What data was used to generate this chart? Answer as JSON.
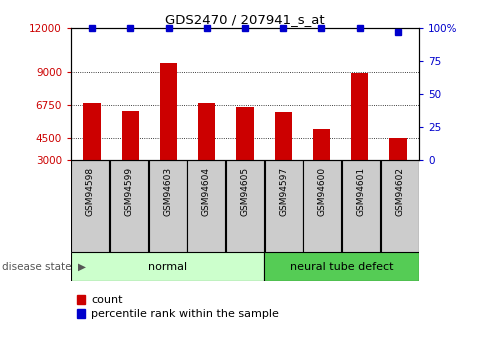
{
  "title": "GDS2470 / 207941_s_at",
  "samples": [
    "GSM94598",
    "GSM94599",
    "GSM94603",
    "GSM94604",
    "GSM94605",
    "GSM94597",
    "GSM94600",
    "GSM94601",
    "GSM94602"
  ],
  "counts": [
    6900,
    6350,
    9600,
    6900,
    6600,
    6300,
    5100,
    8900,
    4500
  ],
  "percentiles": [
    100,
    100,
    100,
    100,
    100,
    100,
    100,
    100,
    97
  ],
  "bar_color": "#cc0000",
  "dot_color": "#0000cc",
  "groups": [
    {
      "label": "normal",
      "start": 0,
      "end": 5,
      "color": "#ccffcc"
    },
    {
      "label": "neural tube defect",
      "start": 5,
      "end": 9,
      "color": "#55cc55"
    }
  ],
  "ylim_left": [
    3000,
    12000
  ],
  "yticks_left": [
    3000,
    4500,
    6750,
    9000,
    12000
  ],
  "ylim_right": [
    0,
    100
  ],
  "yticks_right": [
    0,
    25,
    50,
    75,
    100
  ],
  "bar_bottom": 3000,
  "legend_count_label": "count",
  "legend_pct_label": "percentile rank within the sample",
  "tick_box_color": "#cccccc",
  "disease_state_label": "disease state"
}
